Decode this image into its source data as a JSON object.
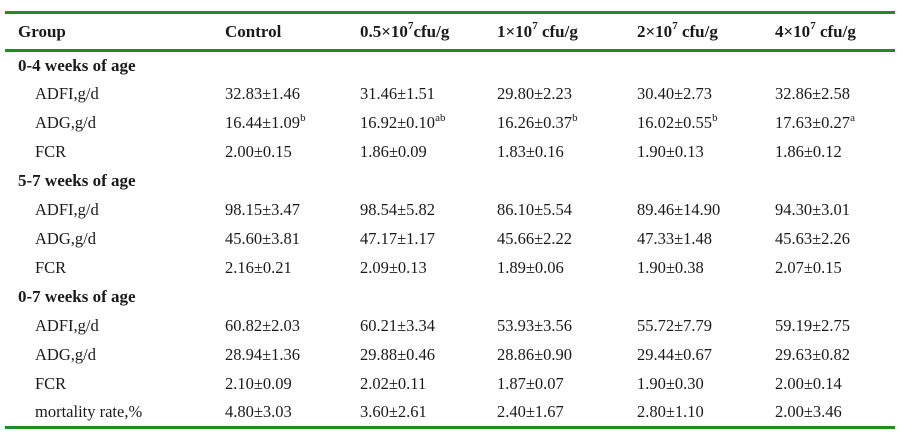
{
  "table": {
    "accent_green": "#228B22",
    "header": [
      {
        "text": "Group",
        "sup": "",
        "post": ""
      },
      {
        "text": "Control",
        "sup": "",
        "post": ""
      },
      {
        "text": "0.5×10",
        "sup": "7",
        "post": "cfu/g"
      },
      {
        "text": "1×10",
        "sup": "7",
        "post": " cfu/g"
      },
      {
        "text": "2×10",
        "sup": "7",
        "post": " cfu/g"
      },
      {
        "text": "4×10",
        "sup": "7",
        "post": " cfu/g"
      }
    ],
    "sections": [
      {
        "title": "0-4 weeks of age",
        "rows": [
          {
            "label": "ADFI,g/d",
            "values": [
              {
                "v": "32.83±1.46",
                "sup": ""
              },
              {
                "v": "31.46±1.51",
                "sup": ""
              },
              {
                "v": "29.80±2.23",
                "sup": ""
              },
              {
                "v": "30.40±2.73",
                "sup": ""
              },
              {
                "v": "32.86±2.58",
                "sup": ""
              }
            ]
          },
          {
            "label": "ADG,g/d",
            "values": [
              {
                "v": "16.44±1.09",
                "sup": "b"
              },
              {
                "v": "16.92±0.10",
                "sup": "ab"
              },
              {
                "v": "16.26±0.37",
                "sup": "b"
              },
              {
                "v": "16.02±0.55",
                "sup": "b"
              },
              {
                "v": "17.63±0.27",
                "sup": "a"
              }
            ]
          },
          {
            "label": "FCR",
            "values": [
              {
                "v": "2.00±0.15",
                "sup": ""
              },
              {
                "v": "1.86±0.09",
                "sup": ""
              },
              {
                "v": "1.83±0.16",
                "sup": ""
              },
              {
                "v": "1.90±0.13",
                "sup": ""
              },
              {
                "v": "1.86±0.12",
                "sup": ""
              }
            ]
          }
        ]
      },
      {
        "title": "5-7 weeks of age",
        "rows": [
          {
            "label": "ADFI,g/d",
            "values": [
              {
                "v": "98.15±3.47",
                "sup": ""
              },
              {
                "v": "98.54±5.82",
                "sup": ""
              },
              {
                "v": "86.10±5.54",
                "sup": ""
              },
              {
                "v": "89.46±14.90",
                "sup": ""
              },
              {
                "v": "94.30±3.01",
                "sup": ""
              }
            ]
          },
          {
            "label": "ADG,g/d",
            "values": [
              {
                "v": "45.60±3.81",
                "sup": ""
              },
              {
                "v": "47.17±1.17",
                "sup": ""
              },
              {
                "v": "45.66±2.22",
                "sup": ""
              },
              {
                "v": "47.33±1.48",
                "sup": ""
              },
              {
                "v": "45.63±2.26",
                "sup": ""
              }
            ]
          },
          {
            "label": "FCR",
            "values": [
              {
                "v": "2.16±0.21",
                "sup": ""
              },
              {
                "v": "2.09±0.13",
                "sup": ""
              },
              {
                "v": "1.89±0.06",
                "sup": ""
              },
              {
                "v": "1.90±0.38",
                "sup": ""
              },
              {
                "v": "2.07±0.15",
                "sup": ""
              }
            ]
          }
        ]
      },
      {
        "title": "0-7 weeks of age",
        "rows": [
          {
            "label": "ADFI,g/d",
            "values": [
              {
                "v": "60.82±2.03",
                "sup": ""
              },
              {
                "v": "60.21±3.34",
                "sup": ""
              },
              {
                "v": "53.93±3.56",
                "sup": ""
              },
              {
                "v": "55.72±7.79",
                "sup": ""
              },
              {
                "v": "59.19±2.75",
                "sup": ""
              }
            ]
          },
          {
            "label": "ADG,g/d",
            "values": [
              {
                "v": "28.94±1.36",
                "sup": ""
              },
              {
                "v": "29.88±0.46",
                "sup": ""
              },
              {
                "v": "28.86±0.90",
                "sup": ""
              },
              {
                "v": "29.44±0.67",
                "sup": ""
              },
              {
                "v": "29.63±0.82",
                "sup": ""
              }
            ]
          },
          {
            "label": "FCR",
            "values": [
              {
                "v": "2.10±0.09",
                "sup": ""
              },
              {
                "v": "2.02±0.11",
                "sup": ""
              },
              {
                "v": "1.87±0.07",
                "sup": ""
              },
              {
                "v": "1.90±0.30",
                "sup": ""
              },
              {
                "v": "2.00±0.14",
                "sup": ""
              }
            ]
          },
          {
            "label": "mortality rate,%",
            "values": [
              {
                "v": "4.80±3.03",
                "sup": ""
              },
              {
                "v": "3.60±2.61",
                "sup": ""
              },
              {
                "v": "2.40±1.67",
                "sup": ""
              },
              {
                "v": "2.80±1.10",
                "sup": ""
              },
              {
                "v": "2.00±3.46",
                "sup": ""
              }
            ]
          }
        ]
      }
    ]
  }
}
